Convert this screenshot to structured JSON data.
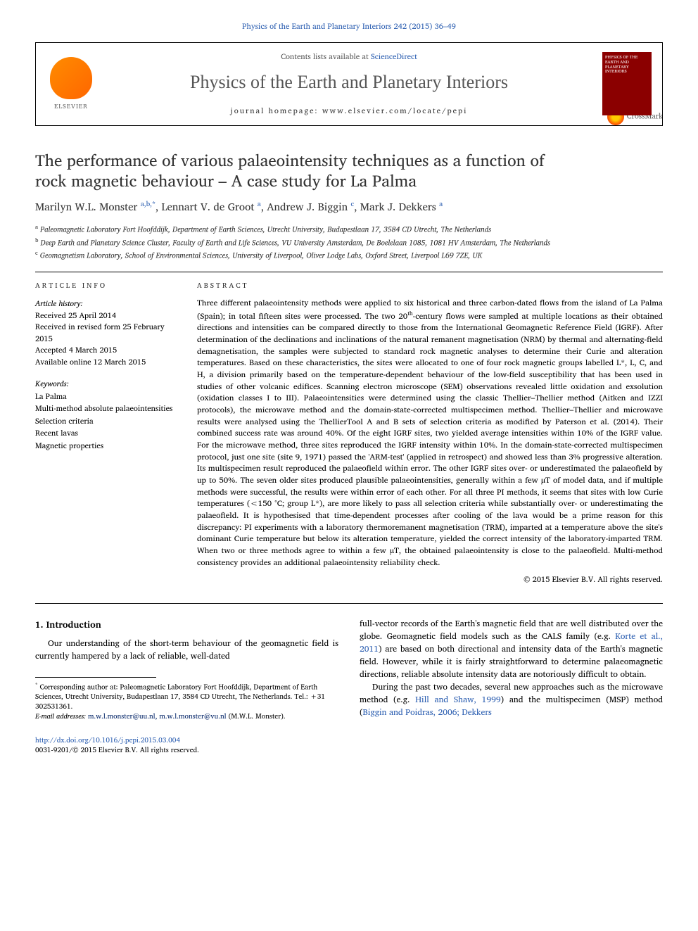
{
  "colors": {
    "link": "#2a5db0",
    "text": "#000000",
    "muted": "#555555",
    "rule": "#000000",
    "cover_bg": "#8b0000",
    "background": "#ffffff"
  },
  "typography": {
    "body_family": "Times New Roman / Charis serif",
    "title_fontsize_pt": 23,
    "journal_fontsize_pt": 26,
    "authors_fontsize_pt": 15,
    "abstract_fontsize_pt": 11.5,
    "body_fontsize_pt": 12,
    "footnote_fontsize_pt": 10
  },
  "header": {
    "top_link": "Physics of the Earth and Planetary Interiors 242 (2015) 36–49",
    "contents_prefix": "Contents lists available at ",
    "contents_link": "ScienceDirect",
    "journal_name": "Physics of the Earth and Planetary Interiors",
    "homepage_label": "journal homepage: www.elsevier.com/locate/pepi",
    "elsevier_label": "ELSEVIER",
    "cover_title": "PHYSICS OF THE EARTH AND PLANETARY INTERIORS"
  },
  "article": {
    "title": "The performance of various palaeointensity techniques as a function of rock magnetic behaviour – A case study for La Palma",
    "crossmark_label": "CrossMark",
    "authors_html": "Marilyn W.L. Monster <span class='sup'>a,b,</span><span class='sup'>*</span>, Lennart V. de Groot <span class='sup'>a</span>, Andrew J. Biggin <span class='sup'>c</span>, Mark J. Dekkers <span class='sup'>a</span>",
    "affiliations": [
      "Paleomagnetic Laboratory Fort Hoofddijk, Department of Earth Sciences, Utrecht University, Budapestlaan 17, 3584 CD Utrecht, The Netherlands",
      "Deep Earth and Planetary Science Cluster, Faculty of Earth and Life Sciences, VU University Amsterdam, De Boelelaan 1085, 1081 HV Amsterdam, The Netherlands",
      "Geomagnetism Laboratory, School of Environmental Sciences, University of Liverpool, Oliver Lodge Labs, Oxford Street, Liverpool L69 7ZE, UK"
    ],
    "affiliation_marks": [
      "a",
      "b",
      "c"
    ]
  },
  "article_info": {
    "heading": "article info",
    "history_label": "Article history:",
    "history": [
      "Received 25 April 2014",
      "Received in revised form 25 February 2015",
      "Accepted 4 March 2015",
      "Available online 12 March 2015"
    ],
    "keywords_label": "Keywords:",
    "keywords": [
      "La Palma",
      "Multi-method absolute palaeointensities",
      "Selection criteria",
      "Recent lavas",
      "Magnetic properties"
    ]
  },
  "abstract": {
    "heading": "abstract",
    "text": "Three different palaeointensity methods were applied to six historical and three carbon-dated flows from the island of La Palma (Spain); in total fifteen sites were processed. The two 20<span class='sup'>th</span>-century flows were sampled at multiple locations as their obtained directions and intensities can be compared directly to those from the International Geomagnetic Reference Field (IGRF). After determination of the declinations and inclinations of the natural remanent magnetisation (NRM) by thermal and alternating-field demagnetisation, the samples were subjected to standard rock magnetic analyses to determine their Curie and alteration temperatures. Based on these characteristics, the sites were allocated to one of four rock magnetic groups labelled L*, L, C, and H, a division primarily based on the temperature-dependent behaviour of the low-field susceptibility that has been used in studies of other volcanic edifices. Scanning electron microscope (SEM) observations revealed little oxidation and exsolution (oxidation classes I to III). Palaeointensities were determined using the classic Thellier–Thellier method (Aitken and IZZI protocols), the microwave method and the domain-state-corrected multispecimen method. Thellier–Thellier and microwave results were analysed using the ThellierTool A and B sets of selection criteria as modified by Paterson et al. (2014). Their combined success rate was around 40%. Of the eight IGRF sites, two yielded average intensities within 10% of the IGRF value. For the microwave method, three sites reproduced the IGRF intensity within 10%. In the domain-state-corrected multispecimen protocol, just one site (site 9, 1971) passed the 'ARM-test' (applied in retrospect) and showed less than 3% progressive alteration. Its multispecimen result reproduced the palaeofield within error. The other IGRF sites over- or underestimated the palaeofield by up to 50%. The seven older sites produced plausible palaeointensities, generally within a few µT of model data, and if multiple methods were successful, the results were within error of each other. For all three PI methods, it seems that sites with low Curie temperatures (<150 °C; group L*), are more likely to pass all selection criteria while substantially over- or underestimating the palaeofield. It is hypothesised that time-dependent processes after cooling of the lava would be a prime reason for this discrepancy: PI experiments with a laboratory thermoremanent magnetisation (TRM), imparted at a temperature above the site's dominant Curie temperature but below its alteration temperature, yielded the correct intensity of the laboratory-imparted TRM. When two or three methods agree to within a few µT, the obtained palaeointensity is close to the palaeofield. Multi-method consistency provides an additional palaeointensity reliability check.",
    "copyright": "© 2015 Elsevier B.V. All rights reserved."
  },
  "body": {
    "intro_heading": "1. Introduction",
    "left_para": "Our understanding of the short-term behaviour of the geomagnetic field is currently hampered by a lack of reliable, well-dated",
    "right_para_1": "full-vector records of the Earth's magnetic field that are well distributed over the globe. Geomagnetic field models such as the CALS family (e.g. <span class='link'>Korte et al., 2011</span>) are based on both directional and intensity data of the Earth's magnetic field. However, while it is fairly straightforward to determine palaeomagnetic directions, reliable absolute intensity data are notoriously difficult to obtain.",
    "right_para_2": "During the past two decades, several new approaches such as the microwave method (e.g. <span class='link'>Hill and Shaw, 1999</span>) and the multispecimen (MSP) method (<span class='link'>Biggin and Poidras, 2006; Dekkers</span>"
  },
  "footnotes": {
    "corresponding": "Corresponding author at: Paleomagnetic Laboratory Fort Hoofddijk, Department of Earth Sciences, Utrecht University, Budapestlaan 17, 3584 CD Utrecht, The Netherlands. Tel.: +31 302531361.",
    "email_label": "E-mail addresses:",
    "emails": "m.w.l.monster@uu.nl, m.w.l.monster@vu.nl",
    "email_attribution": "(M.W.L. Monster)."
  },
  "footer": {
    "doi": "http://dx.doi.org/10.1016/j.pepi.2015.03.004",
    "issn_line": "0031-9201/© 2015 Elsevier B.V. All rights reserved."
  }
}
